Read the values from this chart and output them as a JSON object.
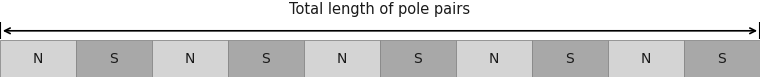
{
  "title": "Total length of pole pairs",
  "poles": [
    "N",
    "S",
    "N",
    "S",
    "N",
    "S",
    "N",
    "S",
    "N",
    "S"
  ],
  "n_color": "#d4d4d4",
  "s_color": "#a8a8a8",
  "border_color": "#888888",
  "text_color": "#1a1a1a",
  "bg_color": "#ffffff",
  "n_poles": 10,
  "label_font_size": 10,
  "title_font_size": 10.5
}
